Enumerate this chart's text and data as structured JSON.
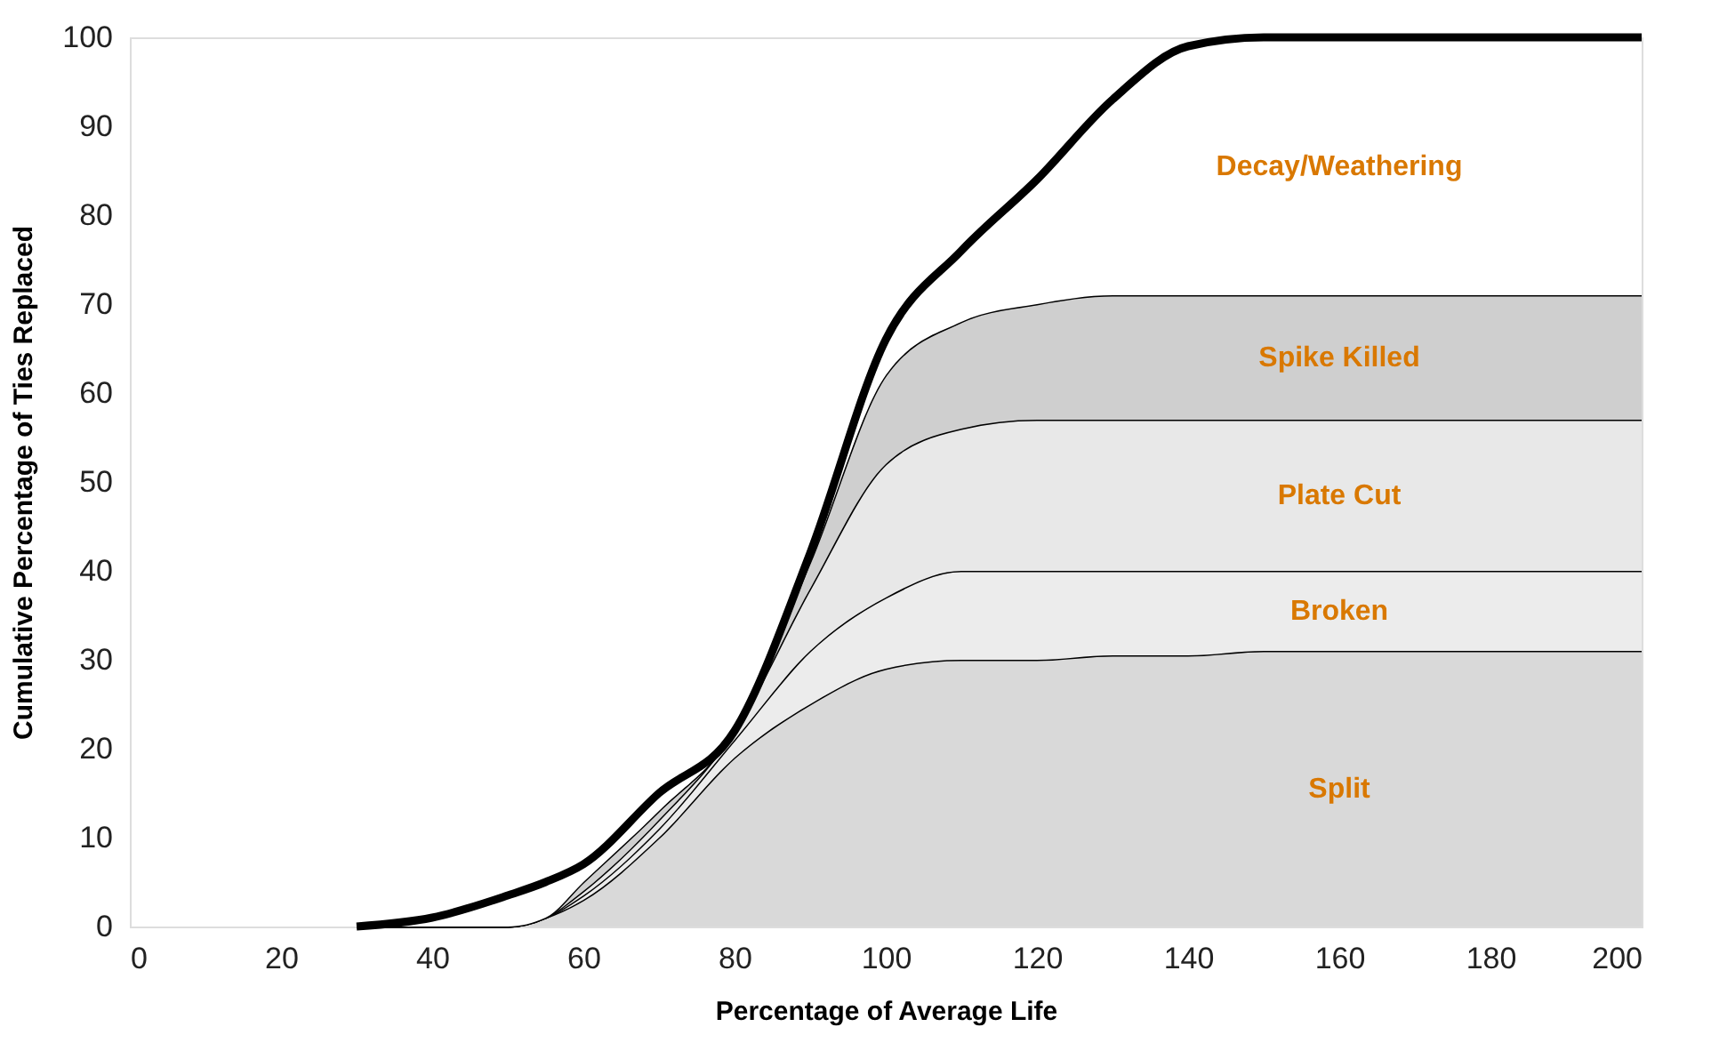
{
  "chart_data": {
    "type": "area",
    "stacked": true,
    "xlabel": "Percentage of Average Life",
    "ylabel": "Cumulative Percentage of Ties Replaced",
    "x": [
      30,
      40,
      50,
      55,
      60,
      70,
      80,
      90,
      100,
      110,
      120,
      130,
      140,
      150,
      160,
      180,
      200
    ],
    "series": [
      {
        "name": "Split",
        "color": "#d9d9d9",
        "values": [
          0,
          0,
          0,
          1,
          3,
          10,
          19,
          25,
          29,
          30,
          30,
          30.5,
          30.5,
          31,
          31,
          31,
          31
        ]
      },
      {
        "name": "Broken",
        "color": "#ececec",
        "values": [
          0,
          0,
          0,
          0,
          0.5,
          1,
          2,
          6,
          8,
          10,
          10,
          9.5,
          9.5,
          9,
          9,
          9,
          9
        ]
      },
      {
        "name": "Plate Cut",
        "color": "#e8e8e8",
        "values": [
          0,
          0,
          0,
          0,
          0.5,
          1,
          1,
          7,
          15,
          16,
          17,
          17,
          17,
          17,
          17,
          17,
          17
        ]
      },
      {
        "name": "Spike Killed",
        "color": "#cfcfcf",
        "values": [
          0,
          0,
          0,
          0,
          1,
          1,
          0,
          3,
          10,
          12,
          13,
          14,
          14,
          14,
          14,
          14,
          14
        ]
      },
      {
        "name": "Decay/Weathering",
        "color": "#ffffff",
        "values": [
          0,
          1,
          3.5,
          4,
          2,
          2,
          0,
          1,
          4,
          8,
          14,
          22,
          28,
          29,
          29,
          29,
          29
        ]
      }
    ],
    "xlim": [
      0,
      200
    ],
    "xticks": [
      0,
      20,
      40,
      60,
      80,
      100,
      120,
      140,
      160,
      180,
      200
    ],
    "ylim": [
      0,
      100
    ],
    "yticks": [
      0,
      10,
      20,
      30,
      40,
      50,
      60,
      70,
      80,
      90,
      100
    ],
    "grid": false
  }
}
